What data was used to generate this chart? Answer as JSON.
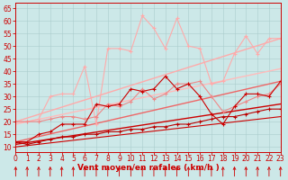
{
  "xlabel": "Vent moyen/en rafales ( km/h )",
  "xlim": [
    0,
    23
  ],
  "ylim": [
    8,
    67
  ],
  "yticks": [
    10,
    15,
    20,
    25,
    30,
    35,
    40,
    45,
    50,
    55,
    60,
    65
  ],
  "xticks": [
    0,
    1,
    2,
    3,
    4,
    5,
    6,
    7,
    8,
    9,
    10,
    11,
    12,
    13,
    14,
    15,
    16,
    17,
    18,
    19,
    20,
    21,
    22,
    23
  ],
  "bg_color": "#cce8e8",
  "grid_color": "#aacccc",
  "lines": [
    {
      "x": [
        0,
        23
      ],
      "y": [
        20,
        53
      ],
      "color": "#ffaaaa",
      "lw": 1.0,
      "marker": null,
      "alpha": 1.0
    },
    {
      "x": [
        0,
        23
      ],
      "y": [
        19,
        41
      ],
      "color": "#ffbbbb",
      "lw": 1.0,
      "marker": null,
      "alpha": 1.0
    },
    {
      "x": [
        0,
        23
      ],
      "y": [
        12,
        36
      ],
      "color": "#ee6666",
      "lw": 1.0,
      "marker": null,
      "alpha": 1.0
    },
    {
      "x": [
        0,
        23
      ],
      "y": [
        11,
        27
      ],
      "color": "#cc0000",
      "lw": 1.0,
      "marker": null,
      "alpha": 1.0
    },
    {
      "x": [
        0,
        23
      ],
      "y": [
        10,
        22
      ],
      "color": "#cc0000",
      "lw": 0.8,
      "marker": null,
      "alpha": 1.0
    },
    {
      "x": [
        0,
        1,
        2,
        3,
        4,
        5,
        6,
        7,
        8,
        9,
        10,
        11,
        12,
        13,
        14,
        15,
        16,
        17,
        18,
        19,
        20,
        21,
        22,
        23
      ],
      "y": [
        20,
        20,
        21,
        30,
        31,
        31,
        42,
        19,
        49,
        49,
        48,
        62,
        57,
        49,
        61,
        50,
        49,
        35,
        36,
        47,
        54,
        47,
        53,
        53
      ],
      "color": "#ffaaaa",
      "lw": 0.8,
      "marker": "+",
      "markersize": 3.5,
      "alpha": 1.0
    },
    {
      "x": [
        0,
        1,
        2,
        3,
        4,
        5,
        6,
        7,
        8,
        9,
        10,
        11,
        12,
        13,
        14,
        15,
        16,
        17,
        18,
        19,
        20,
        21,
        22,
        23
      ],
      "y": [
        20,
        20,
        20,
        21,
        22,
        22,
        21,
        22,
        27,
        26,
        28,
        33,
        29,
        31,
        35,
        35,
        36,
        30,
        24,
        26,
        28,
        30,
        31,
        35
      ],
      "color": "#ee8888",
      "lw": 0.8,
      "marker": "+",
      "markersize": 3.5,
      "alpha": 1.0
    },
    {
      "x": [
        0,
        1,
        2,
        3,
        4,
        5,
        6,
        7,
        8,
        9,
        10,
        11,
        12,
        13,
        14,
        15,
        16,
        17,
        18,
        19,
        20,
        21,
        22,
        23
      ],
      "y": [
        12,
        12,
        15,
        16,
        19,
        19,
        19,
        27,
        26,
        27,
        33,
        32,
        33,
        38,
        33,
        35,
        30,
        23,
        19,
        26,
        31,
        31,
        30,
        36
      ],
      "color": "#cc0000",
      "lw": 0.8,
      "marker": "+",
      "markersize": 3.5,
      "alpha": 1.0
    },
    {
      "x": [
        0,
        1,
        2,
        3,
        4,
        5,
        6,
        7,
        8,
        9,
        10,
        11,
        12,
        13,
        14,
        15,
        16,
        17,
        18,
        19,
        20,
        21,
        22,
        23
      ],
      "y": [
        12,
        11,
        12,
        13,
        14,
        14,
        15,
        15,
        16,
        16,
        17,
        17,
        18,
        18,
        19,
        19,
        20,
        21,
        22,
        22,
        23,
        24,
        25,
        25
      ],
      "color": "#bb0000",
      "lw": 0.8,
      "marker": "+",
      "markersize": 3.0,
      "alpha": 1.0
    }
  ],
  "arrow_color": "#cc0000",
  "tick_color": "#cc0000",
  "axis_label_color": "#cc0000",
  "axis_label_fontsize": 6.5,
  "tick_fontsize": 5.5
}
